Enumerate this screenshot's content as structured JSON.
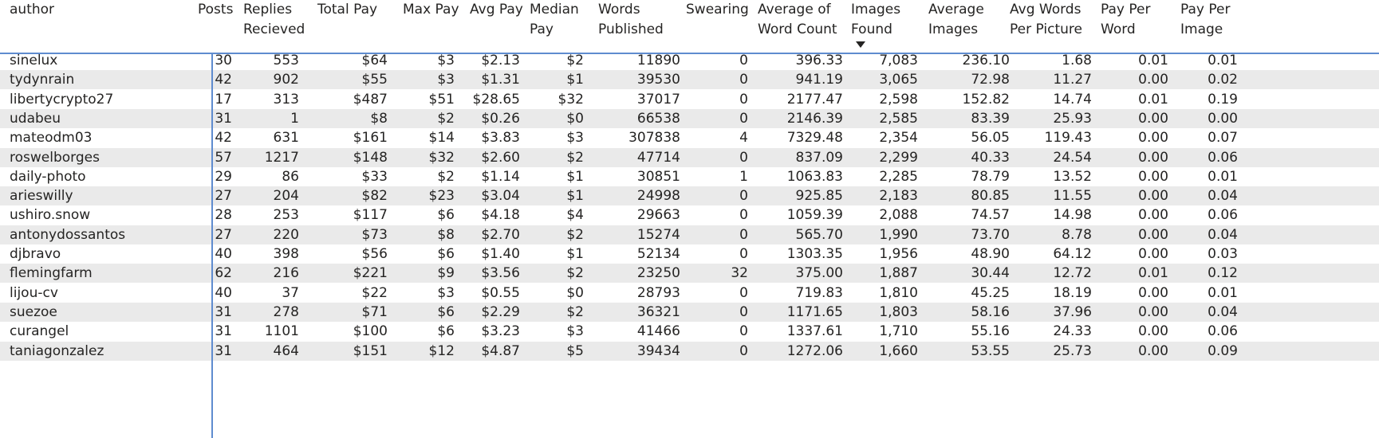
{
  "sort_column": "images_found",
  "columns": [
    {
      "key": "author",
      "label": "author",
      "align": "left"
    },
    {
      "key": "posts",
      "label": "Posts",
      "align": "right"
    },
    {
      "key": "replies",
      "label": "Replies\nRecieved",
      "align": "right"
    },
    {
      "key": "total_pay",
      "label": "Total Pay",
      "align": "right"
    },
    {
      "key": "max_pay",
      "label": "Max Pay",
      "align": "right"
    },
    {
      "key": "avg_pay",
      "label": "Avg Pay",
      "align": "right"
    },
    {
      "key": "median_pay",
      "label": "Median\nPay",
      "align": "right"
    },
    {
      "key": "words_published",
      "label": "Words\nPublished",
      "align": "right"
    },
    {
      "key": "swearing",
      "label": "Swearing",
      "align": "right"
    },
    {
      "key": "avg_word_count",
      "label": "Average of\nWord Count",
      "align": "right"
    },
    {
      "key": "images_found",
      "label": "Images\nFound",
      "align": "right"
    },
    {
      "key": "average_images",
      "label": "Average\nImages",
      "align": "right"
    },
    {
      "key": "avg_words_per_picture",
      "label": "Avg Words\nPer Picture",
      "align": "right"
    },
    {
      "key": "pay_per_word",
      "label": "Pay Per\nWord",
      "align": "right"
    },
    {
      "key": "pay_per_image",
      "label": "Pay Per\nImage",
      "align": "right"
    }
  ],
  "rows": [
    [
      "sinelux",
      "30",
      "553",
      "$64",
      "$3",
      "$2.13",
      "$2",
      "11890",
      "0",
      "396.33",
      "7,083",
      "236.10",
      "1.68",
      "0.01",
      "0.01"
    ],
    [
      "tydynrain",
      "42",
      "902",
      "$55",
      "$3",
      "$1.31",
      "$1",
      "39530",
      "0",
      "941.19",
      "3,065",
      "72.98",
      "11.27",
      "0.00",
      "0.02"
    ],
    [
      "libertycrypto27",
      "17",
      "313",
      "$487",
      "$51",
      "$28.65",
      "$32",
      "37017",
      "0",
      "2177.47",
      "2,598",
      "152.82",
      "14.74",
      "0.01",
      "0.19"
    ],
    [
      "udabeu",
      "31",
      "1",
      "$8",
      "$2",
      "$0.26",
      "$0",
      "66538",
      "0",
      "2146.39",
      "2,585",
      "83.39",
      "25.93",
      "0.00",
      "0.00"
    ],
    [
      "mateodm03",
      "42",
      "631",
      "$161",
      "$14",
      "$3.83",
      "$3",
      "307838",
      "4",
      "7329.48",
      "2,354",
      "56.05",
      "119.43",
      "0.00",
      "0.07"
    ],
    [
      "roswelborges",
      "57",
      "1217",
      "$148",
      "$32",
      "$2.60",
      "$2",
      "47714",
      "0",
      "837.09",
      "2,299",
      "40.33",
      "24.54",
      "0.00",
      "0.06"
    ],
    [
      "daily-photo",
      "29",
      "86",
      "$33",
      "$2",
      "$1.14",
      "$1",
      "30851",
      "1",
      "1063.83",
      "2,285",
      "78.79",
      "13.52",
      "0.00",
      "0.01"
    ],
    [
      "arieswilly",
      "27",
      "204",
      "$82",
      "$23",
      "$3.04",
      "$1",
      "24998",
      "0",
      "925.85",
      "2,183",
      "80.85",
      "11.55",
      "0.00",
      "0.04"
    ],
    [
      "ushiro.snow",
      "28",
      "253",
      "$117",
      "$6",
      "$4.18",
      "$4",
      "29663",
      "0",
      "1059.39",
      "2,088",
      "74.57",
      "14.98",
      "0.00",
      "0.06"
    ],
    [
      "antonydossantos",
      "27",
      "220",
      "$73",
      "$8",
      "$2.70",
      "$2",
      "15274",
      "0",
      "565.70",
      "1,990",
      "73.70",
      "8.78",
      "0.00",
      "0.04"
    ],
    [
      "djbravo",
      "40",
      "398",
      "$56",
      "$6",
      "$1.40",
      "$1",
      "52134",
      "0",
      "1303.35",
      "1,956",
      "48.90",
      "64.12",
      "0.00",
      "0.03"
    ],
    [
      "flemingfarm",
      "62",
      "216",
      "$221",
      "$9",
      "$3.56",
      "$2",
      "23250",
      "32",
      "375.00",
      "1,887",
      "30.44",
      "12.72",
      "0.01",
      "0.12"
    ],
    [
      "lijou-cv",
      "40",
      "37",
      "$22",
      "$3",
      "$0.55",
      "$0",
      "28793",
      "0",
      "719.83",
      "1,810",
      "45.25",
      "18.19",
      "0.00",
      "0.01"
    ],
    [
      "suezoe",
      "31",
      "278",
      "$71",
      "$6",
      "$2.29",
      "$2",
      "36321",
      "0",
      "1171.65",
      "1,803",
      "58.16",
      "37.96",
      "0.00",
      "0.04"
    ],
    [
      "curangel",
      "31",
      "1101",
      "$100",
      "$6",
      "$3.23",
      "$3",
      "41466",
      "0",
      "1337.61",
      "1,710",
      "55.16",
      "24.33",
      "0.00",
      "0.06"
    ],
    [
      "taniagonzalez",
      "31",
      "464",
      "$151",
      "$12",
      "$4.87",
      "$5",
      "39434",
      "0",
      "1272.06",
      "1,660",
      "53.55",
      "25.73",
      "0.00",
      "0.09"
    ]
  ]
}
